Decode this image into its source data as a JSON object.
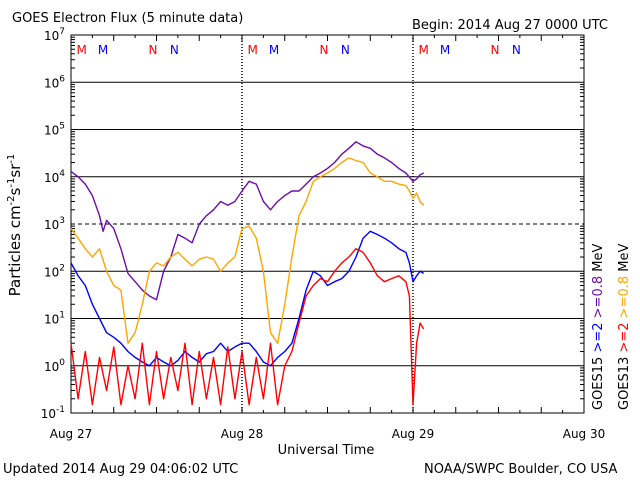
{
  "header": {
    "title": "GOES Electron Flux (5 minute data)",
    "begin": "Begin: 2014 Aug 27 0000 UTC"
  },
  "footer": {
    "updated": "Updated 2014 Aug 29 04:06:02 UTC",
    "credit": "NOAA/SWPC Boulder, CO USA"
  },
  "chart_data": {
    "type": "line",
    "xlabel": "Universal Time",
    "ylabel_base": "Particles cm",
    "ylabel_sup1": "-2",
    "ylabel_mid1": "s",
    "ylabel_sup2": "-1",
    "ylabel_mid2": "sr",
    "ylabel_sup3": "-1",
    "x_unit": "hours since 2014 Aug 27 0000 UTC",
    "xlim": [
      0,
      72
    ],
    "x_tick_labels": [
      {
        "x": 0,
        "label": "Aug 27"
      },
      {
        "x": 24,
        "label": "Aug 28"
      },
      {
        "x": 48,
        "label": "Aug 29"
      },
      {
        "x": 72,
        "label": "Aug 30"
      }
    ],
    "yscale": "log",
    "ylim": [
      0.1,
      10000000
    ],
    "y_tick_labels": [
      {
        "base": "10",
        "exp": "-1"
      },
      {
        "base": "10",
        "exp": "0"
      },
      {
        "base": "10",
        "exp": "1"
      },
      {
        "base": "10",
        "exp": "2"
      },
      {
        "base": "10",
        "exp": "3"
      },
      {
        "base": "10",
        "exp": "4"
      },
      {
        "base": "10",
        "exp": "5"
      },
      {
        "base": "10",
        "exp": "6"
      },
      {
        "base": "10",
        "exp": "7"
      }
    ],
    "threshold_line": 1000,
    "grid": true,
    "right_labels": [
      {
        "text": "GOES15",
        "color": "#000000"
      },
      {
        "text": ">=2",
        "color": "#0000ff"
      },
      {
        "text": ">=0.8",
        "color": "#6a0dad"
      },
      {
        "text": "MeV",
        "color": "#000000"
      },
      {
        "text": "GOES13",
        "color": "#000000"
      },
      {
        "text": ">=2",
        "color": "#ff0000"
      },
      {
        "text": ">=0.8",
        "color": "#ffa500"
      },
      {
        "text": "MeV",
        "color": "#000000"
      }
    ],
    "markers": [
      {
        "x": 1.5,
        "label": "M",
        "color": "#ff0000"
      },
      {
        "x": 4.5,
        "label": "M",
        "color": "#0000ff"
      },
      {
        "x": 11.5,
        "label": "N",
        "color": "#ff0000"
      },
      {
        "x": 14.5,
        "label": "N",
        "color": "#0000ff"
      },
      {
        "x": 25.5,
        "label": "M",
        "color": "#ff0000"
      },
      {
        "x": 28.5,
        "label": "M",
        "color": "#0000ff"
      },
      {
        "x": 35.5,
        "label": "N",
        "color": "#ff0000"
      },
      {
        "x": 38.5,
        "label": "N",
        "color": "#0000ff"
      },
      {
        "x": 49.5,
        "label": "M",
        "color": "#ff0000"
      },
      {
        "x": 52.5,
        "label": "M",
        "color": "#0000ff"
      },
      {
        "x": 59.5,
        "label": "N",
        "color": "#ff0000"
      },
      {
        "x": 62.5,
        "label": "N",
        "color": "#0000ff"
      }
    ],
    "series": [
      {
        "name": "GOES15 >=0.8 MeV",
        "color": "#6a0dad",
        "points": [
          [
            0,
            13000
          ],
          [
            1,
            10000
          ],
          [
            2,
            7000
          ],
          [
            3,
            4000
          ],
          [
            4,
            1500
          ],
          [
            4.5,
            700
          ],
          [
            5,
            1200
          ],
          [
            6,
            800
          ],
          [
            7,
            300
          ],
          [
            8,
            90
          ],
          [
            9,
            60
          ],
          [
            10,
            40
          ],
          [
            11,
            30
          ],
          [
            12,
            25
          ],
          [
            13,
            100
          ],
          [
            14,
            200
          ],
          [
            15,
            600
          ],
          [
            16,
            500
          ],
          [
            17,
            400
          ],
          [
            18,
            1000
          ],
          [
            19,
            1500
          ],
          [
            20,
            2000
          ],
          [
            21,
            3000
          ],
          [
            22,
            2500
          ],
          [
            23,
            3000
          ],
          [
            24,
            5000
          ],
          [
            25,
            8000
          ],
          [
            26,
            7000
          ],
          [
            27,
            3000
          ],
          [
            28,
            2000
          ],
          [
            29,
            3000
          ],
          [
            30,
            4000
          ],
          [
            31,
            5000
          ],
          [
            32,
            5000
          ],
          [
            33,
            7000
          ],
          [
            34,
            10000
          ],
          [
            35,
            12000
          ],
          [
            36,
            15000
          ],
          [
            37,
            20000
          ],
          [
            38,
            30000
          ],
          [
            39,
            40000
          ],
          [
            40,
            55000
          ],
          [
            41,
            45000
          ],
          [
            42,
            40000
          ],
          [
            43,
            30000
          ],
          [
            44,
            25000
          ],
          [
            45,
            20000
          ],
          [
            46,
            15000
          ],
          [
            47,
            12000
          ],
          [
            48,
            8000
          ],
          [
            48.5,
            9000
          ],
          [
            49,
            11000
          ],
          [
            49.5,
            12000
          ]
        ]
      },
      {
        "name": "GOES13 >=0.8 MeV",
        "color": "#ffa500",
        "points": [
          [
            0,
            800
          ],
          [
            1,
            500
          ],
          [
            2,
            300
          ],
          [
            3,
            200
          ],
          [
            4,
            300
          ],
          [
            5,
            100
          ],
          [
            6,
            50
          ],
          [
            7,
            40
          ],
          [
            8,
            3
          ],
          [
            9,
            5
          ],
          [
            10,
            20
          ],
          [
            11,
            100
          ],
          [
            12,
            150
          ],
          [
            13,
            130
          ],
          [
            14,
            200
          ],
          [
            15,
            250
          ],
          [
            16,
            180
          ],
          [
            17,
            130
          ],
          [
            18,
            180
          ],
          [
            19,
            200
          ],
          [
            20,
            180
          ],
          [
            21,
            100
          ],
          [
            22,
            150
          ],
          [
            23,
            200
          ],
          [
            24,
            800
          ],
          [
            25,
            900
          ],
          [
            26,
            500
          ],
          [
            27,
            100
          ],
          [
            28,
            5
          ],
          [
            29,
            3
          ],
          [
            30,
            20
          ],
          [
            31,
            200
          ],
          [
            32,
            1500
          ],
          [
            33,
            3000
          ],
          [
            34,
            8000
          ],
          [
            35,
            10000
          ],
          [
            36,
            12000
          ],
          [
            37,
            15000
          ],
          [
            38,
            20000
          ],
          [
            39,
            25000
          ],
          [
            40,
            22000
          ],
          [
            41,
            20000
          ],
          [
            42,
            12000
          ],
          [
            43,
            10000
          ],
          [
            44,
            8000
          ],
          [
            45,
            8000
          ],
          [
            46,
            7000
          ],
          [
            47,
            6500
          ],
          [
            47.5,
            5000
          ],
          [
            48,
            3500
          ],
          [
            48.5,
            4500
          ],
          [
            49,
            3000
          ],
          [
            49.5,
            2500
          ]
        ]
      },
      {
        "name": "GOES15 >=2 MeV",
        "color": "#0000ff",
        "points": [
          [
            0,
            150
          ],
          [
            1,
            80
          ],
          [
            2,
            50
          ],
          [
            3,
            20
          ],
          [
            4,
            10
          ],
          [
            5,
            5
          ],
          [
            6,
            4
          ],
          [
            7,
            3
          ],
          [
            8,
            2
          ],
          [
            9,
            1.5
          ],
          [
            10,
            1.2
          ],
          [
            11,
            1
          ],
          [
            12,
            1.5
          ],
          [
            13,
            1.2
          ],
          [
            14,
            1
          ],
          [
            15,
            1.3
          ],
          [
            16,
            2
          ],
          [
            17,
            1.5
          ],
          [
            18,
            1.2
          ],
          [
            19,
            1.8
          ],
          [
            20,
            2
          ],
          [
            21,
            3
          ],
          [
            22,
            2
          ],
          [
            23,
            2.5
          ],
          [
            24,
            3
          ],
          [
            25,
            3
          ],
          [
            26,
            2
          ],
          [
            27,
            1.2
          ],
          [
            28,
            1
          ],
          [
            29,
            1.5
          ],
          [
            30,
            2
          ],
          [
            31,
            3
          ],
          [
            32,
            10
          ],
          [
            33,
            40
          ],
          [
            34,
            100
          ],
          [
            35,
            80
          ],
          [
            36,
            50
          ],
          [
            37,
            60
          ],
          [
            38,
            70
          ],
          [
            39,
            100
          ],
          [
            40,
            200
          ],
          [
            41,
            500
          ],
          [
            42,
            700
          ],
          [
            43,
            600
          ],
          [
            44,
            500
          ],
          [
            45,
            400
          ],
          [
            46,
            300
          ],
          [
            47,
            250
          ],
          [
            47.5,
            150
          ],
          [
            48,
            60
          ],
          [
            48.5,
            80
          ],
          [
            49,
            100
          ],
          [
            49.5,
            90
          ]
        ]
      },
      {
        "name": "GOES13 >=2 MeV",
        "color": "#ff0000",
        "points": [
          [
            0,
            3
          ],
          [
            1,
            0.2
          ],
          [
            2,
            2
          ],
          [
            3,
            0.15
          ],
          [
            4,
            1.5
          ],
          [
            5,
            0.3
          ],
          [
            6,
            2.5
          ],
          [
            7,
            0.15
          ],
          [
            8,
            1
          ],
          [
            9,
            0.2
          ],
          [
            10,
            3
          ],
          [
            11,
            0.15
          ],
          [
            12,
            2
          ],
          [
            13,
            0.2
          ],
          [
            14,
            1.5
          ],
          [
            15,
            0.3
          ],
          [
            16,
            3
          ],
          [
            17,
            0.15
          ],
          [
            18,
            2
          ],
          [
            19,
            0.2
          ],
          [
            20,
            1.5
          ],
          [
            21,
            0.15
          ],
          [
            22,
            2.5
          ],
          [
            23,
            0.2
          ],
          [
            24,
            2
          ],
          [
            25,
            0.15
          ],
          [
            26,
            1.5
          ],
          [
            27,
            0.2
          ],
          [
            28,
            3
          ],
          [
            29,
            0.15
          ],
          [
            30,
            1
          ],
          [
            31,
            2
          ],
          [
            32,
            8
          ],
          [
            33,
            30
          ],
          [
            34,
            50
          ],
          [
            35,
            70
          ],
          [
            36,
            60
          ],
          [
            37,
            100
          ],
          [
            38,
            150
          ],
          [
            39,
            200
          ],
          [
            40,
            300
          ],
          [
            41,
            250
          ],
          [
            42,
            150
          ],
          [
            43,
            80
          ],
          [
            44,
            60
          ],
          [
            45,
            70
          ],
          [
            46,
            80
          ],
          [
            47,
            60
          ],
          [
            47.5,
            30
          ],
          [
            48,
            0.15
          ],
          [
            48.5,
            3
          ],
          [
            49,
            8
          ],
          [
            49.5,
            6
          ]
        ]
      }
    ]
  }
}
